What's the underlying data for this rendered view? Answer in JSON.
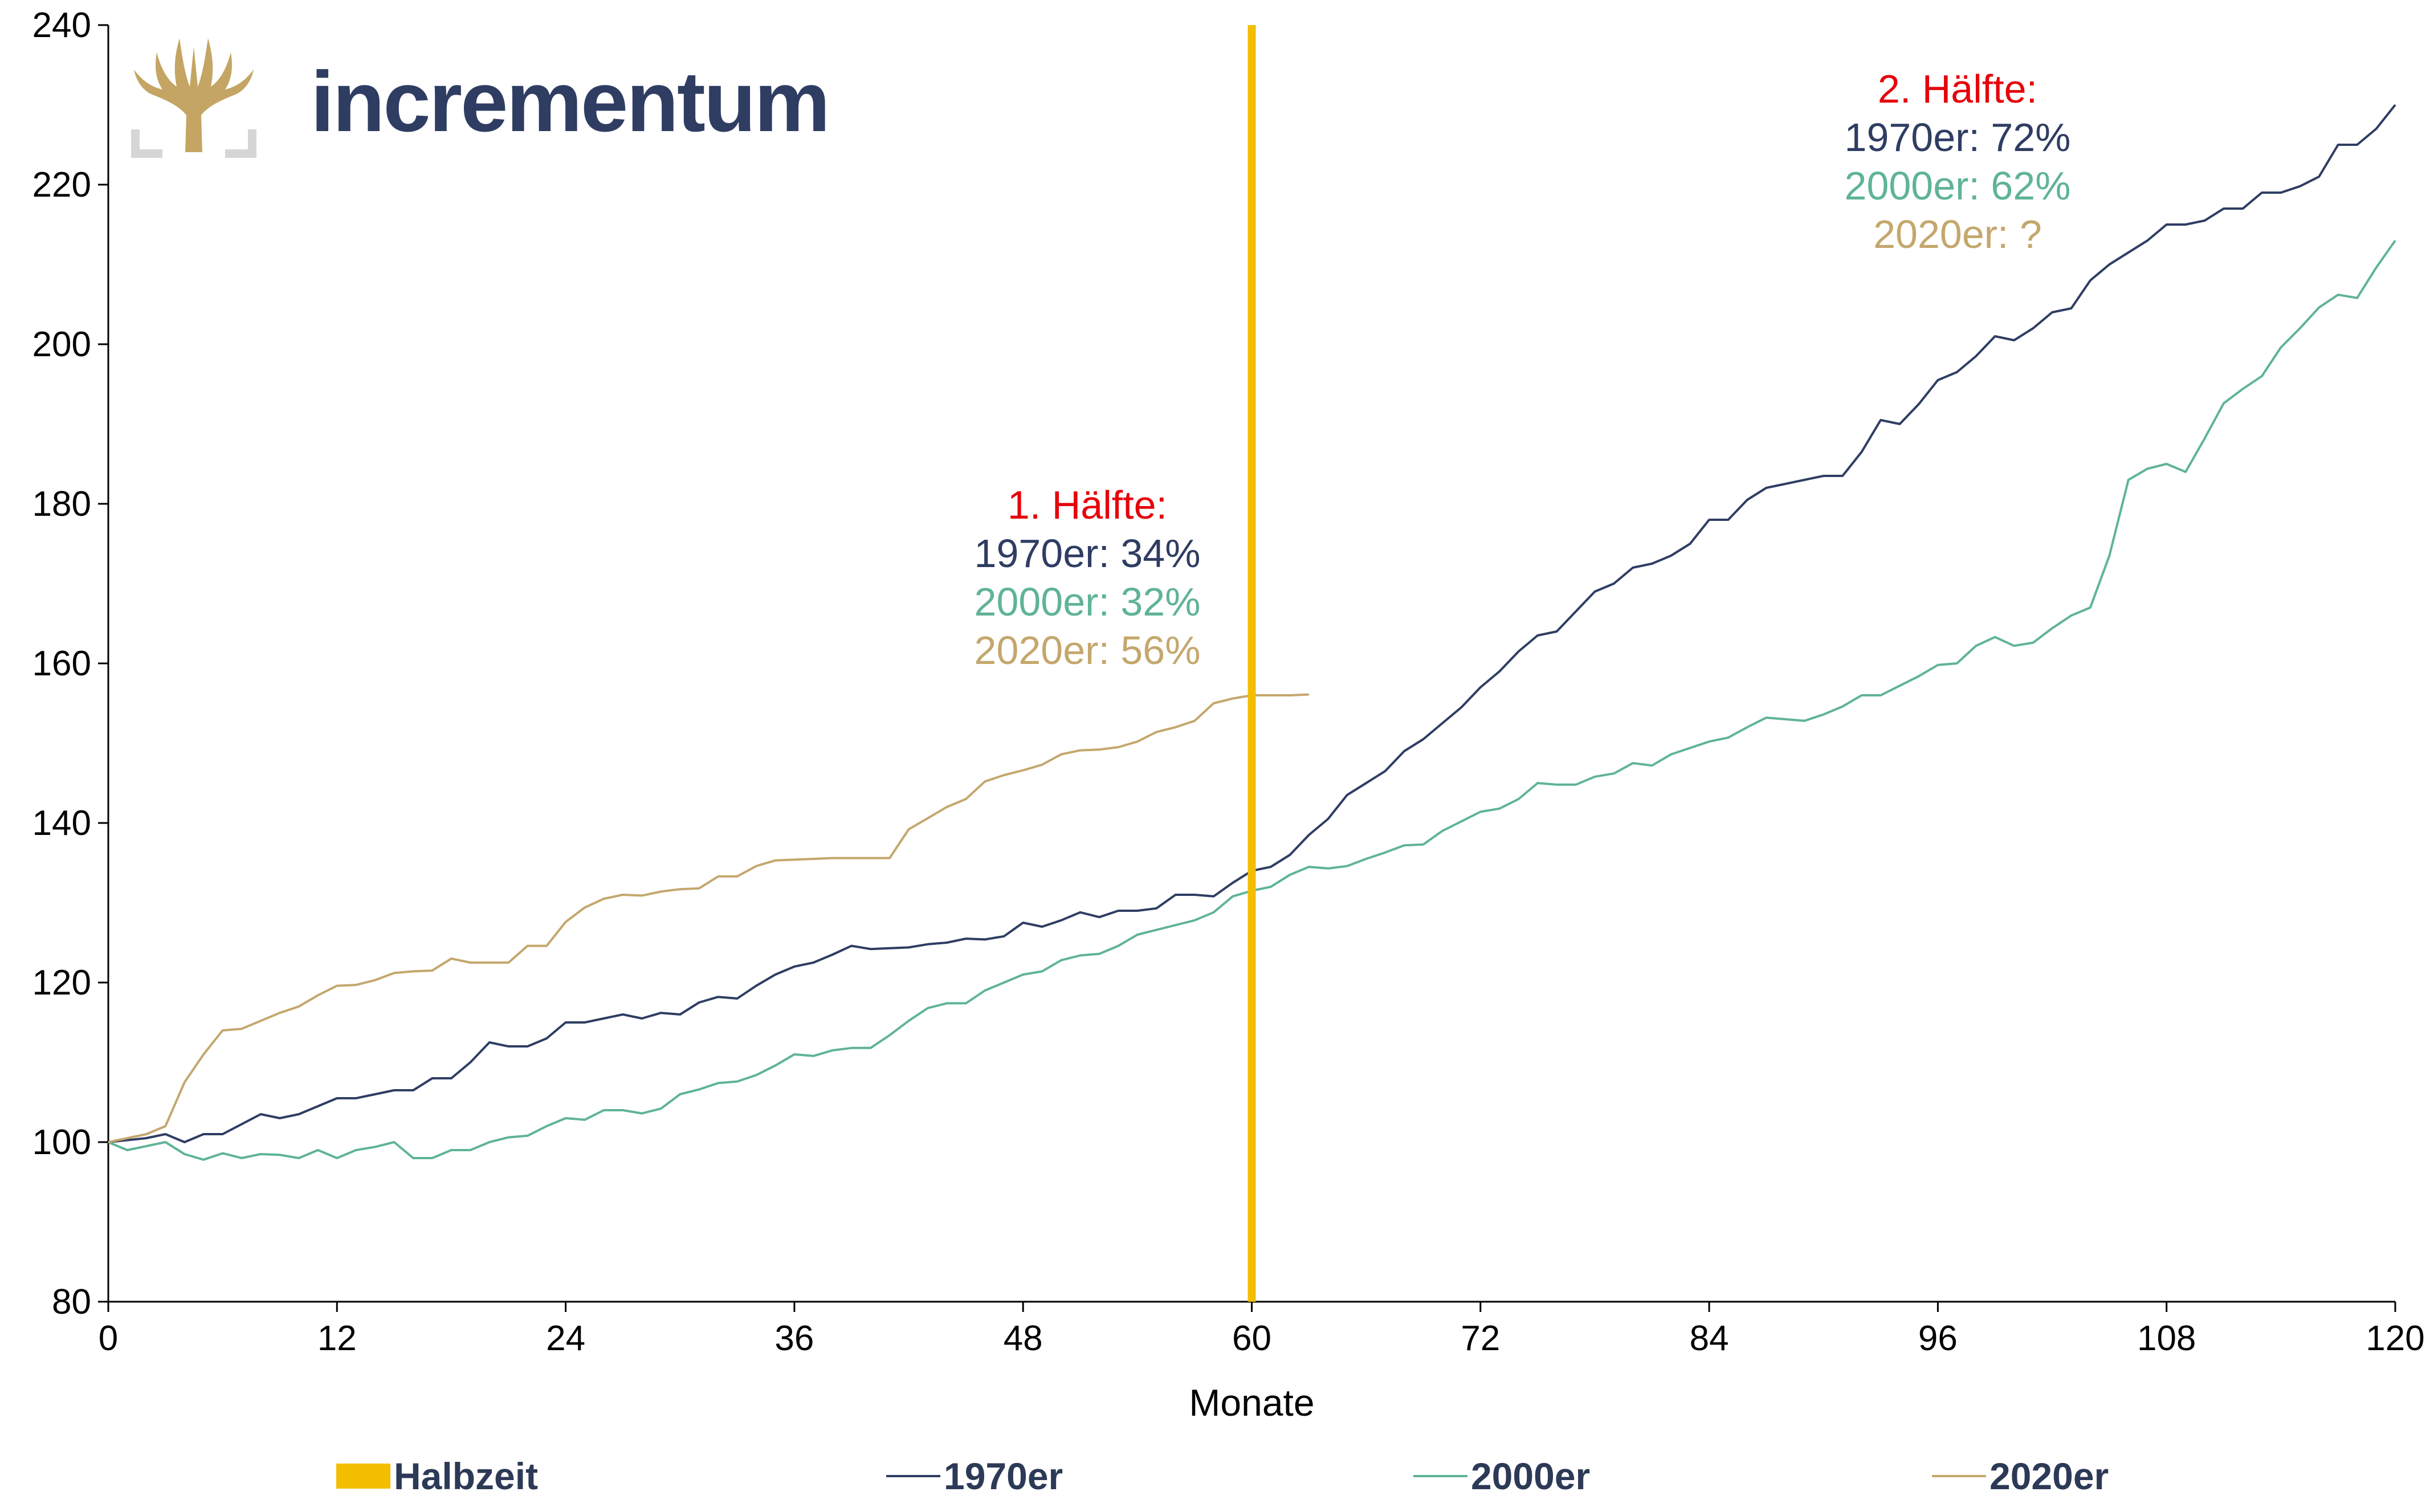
{
  "logo": {
    "text": "incrementum",
    "text_color": "#2f3d63",
    "tree_color": "#c4a563",
    "frame_color": "#d6d6d6"
  },
  "colors": {
    "halbzeit": "#f3bd00",
    "s1970": "#2f3d63",
    "s2000": "#5fb399",
    "s2020": "#c4a76d",
    "red": "#e6000a"
  },
  "legend": [
    {
      "label": "Halbzeit",
      "swatch": "bar",
      "color": "#f3bd00"
    },
    {
      "label": "1970er",
      "swatch": "line",
      "color": "#2f3d63"
    },
    {
      "label": "2000er",
      "swatch": "line",
      "color": "#5fb399"
    },
    {
      "label": "2020er",
      "swatch": "line",
      "color": "#c4a76d"
    }
  ],
  "annotations": {
    "first": {
      "title": "1. Hälfte:",
      "l1970": "1970er: 34%",
      "l2000": "2000er: 32%",
      "l2020": "2020er: 56%"
    },
    "second": {
      "title": "2. Hälfte:",
      "l1970": "1970er: 72%",
      "l2000": "2000er: 62%",
      "l2020": "2020er: ?"
    }
  },
  "chart_data": {
    "type": "line",
    "xlabel": "Monate",
    "ylabel": "",
    "xlim": [
      0,
      120
    ],
    "ylim": [
      80,
      240
    ],
    "xticks": [
      0,
      12,
      24,
      36,
      48,
      60,
      72,
      84,
      96,
      108,
      120
    ],
    "yticks": [
      80,
      100,
      120,
      140,
      160,
      180,
      200,
      220,
      240
    ],
    "grid": false,
    "legend_position": "bottom",
    "vline": {
      "name": "Halbzeit",
      "x": 60
    },
    "series": [
      {
        "name": "1970er",
        "points": [
          [
            0,
            100
          ],
          [
            2,
            100.5
          ],
          [
            3,
            101
          ],
          [
            4,
            100
          ],
          [
            5,
            101
          ],
          [
            6,
            101
          ],
          [
            8,
            103.5
          ],
          [
            9,
            103
          ],
          [
            10,
            103.5
          ],
          [
            11,
            104.5
          ],
          [
            12,
            105.5
          ],
          [
            13,
            105.5
          ],
          [
            14,
            106
          ],
          [
            15,
            106.5
          ],
          [
            16,
            106.5
          ],
          [
            17,
            108
          ],
          [
            18,
            108
          ],
          [
            19,
            110
          ],
          [
            20,
            112.5
          ],
          [
            21,
            112
          ],
          [
            22,
            112
          ],
          [
            23,
            113
          ],
          [
            24,
            115
          ],
          [
            25,
            115
          ],
          [
            26,
            115.5
          ],
          [
            27,
            116
          ],
          [
            28,
            115.5
          ],
          [
            29,
            116.2
          ],
          [
            30,
            116
          ],
          [
            31,
            117.5
          ],
          [
            32,
            118.2
          ],
          [
            33,
            118
          ],
          [
            34,
            119.6
          ],
          [
            35,
            121
          ],
          [
            36,
            122
          ],
          [
            37,
            122.5
          ],
          [
            38,
            123.5
          ],
          [
            39,
            124.6
          ],
          [
            40,
            124.2
          ],
          [
            41,
            124.3
          ],
          [
            42,
            124.4
          ],
          [
            43,
            124.8
          ],
          [
            44,
            125
          ],
          [
            45,
            125.5
          ],
          [
            46,
            125.4
          ],
          [
            47,
            125.8
          ],
          [
            48,
            127.5
          ],
          [
            49,
            127
          ],
          [
            50,
            127.8
          ],
          [
            51,
            128.8
          ],
          [
            52,
            128.2
          ],
          [
            53,
            129
          ],
          [
            54,
            129
          ],
          [
            55,
            129.3
          ],
          [
            56,
            131
          ],
          [
            57,
            131
          ],
          [
            58,
            130.8
          ],
          [
            59,
            132.5
          ],
          [
            60,
            134
          ],
          [
            61,
            134.5
          ],
          [
            62,
            136
          ],
          [
            63,
            138.5
          ],
          [
            64,
            140.5
          ],
          [
            65,
            143.5
          ],
          [
            66,
            145
          ],
          [
            67,
            146.5
          ],
          [
            68,
            149
          ],
          [
            69,
            150.5
          ],
          [
            70,
            152.5
          ],
          [
            71,
            154.5
          ],
          [
            72,
            157
          ],
          [
            73,
            159
          ],
          [
            74,
            161.5
          ],
          [
            75,
            163.5
          ],
          [
            76,
            164
          ],
          [
            77,
            166.5
          ],
          [
            78,
            169
          ],
          [
            79,
            170
          ],
          [
            80,
            172
          ],
          [
            81,
            172.5
          ],
          [
            82,
            173.5
          ],
          [
            83,
            175
          ],
          [
            84,
            178
          ],
          [
            85,
            178
          ],
          [
            86,
            180.5
          ],
          [
            87,
            182
          ],
          [
            88,
            182.5
          ],
          [
            89,
            183
          ],
          [
            90,
            183.5
          ],
          [
            91,
            183.5
          ],
          [
            92,
            186.5
          ],
          [
            93,
            190.5
          ],
          [
            94,
            190
          ],
          [
            95,
            192.5
          ],
          [
            96,
            195.5
          ],
          [
            97,
            196.5
          ],
          [
            98,
            198.5
          ],
          [
            99,
            201
          ],
          [
            100,
            200.5
          ],
          [
            101,
            202
          ],
          [
            102,
            204
          ],
          [
            103,
            204.5
          ],
          [
            104,
            208
          ],
          [
            105,
            210
          ],
          [
            106,
            211.5
          ],
          [
            107,
            213
          ],
          [
            108,
            215
          ],
          [
            109,
            215
          ],
          [
            110,
            215.5
          ],
          [
            111,
            217
          ],
          [
            112,
            217
          ],
          [
            113,
            219
          ],
          [
            114,
            219
          ],
          [
            115,
            219.8
          ],
          [
            116,
            221
          ],
          [
            117,
            225
          ],
          [
            118,
            225
          ],
          [
            119,
            227
          ],
          [
            120,
            230
          ]
        ]
      },
      {
        "name": "2000er",
        "points": [
          [
            0,
            100
          ],
          [
            1,
            99
          ],
          [
            2,
            99.5
          ],
          [
            3,
            100
          ],
          [
            4,
            98.5
          ],
          [
            5,
            97.8
          ],
          [
            6,
            98.6
          ],
          [
            7,
            98
          ],
          [
            8,
            98.5
          ],
          [
            9,
            98.4
          ],
          [
            10,
            98
          ],
          [
            11,
            99
          ],
          [
            12,
            98
          ],
          [
            13,
            99
          ],
          [
            14,
            99.4
          ],
          [
            15,
            100
          ],
          [
            16,
            98
          ],
          [
            17,
            98
          ],
          [
            18,
            99
          ],
          [
            19,
            99
          ],
          [
            20,
            100
          ],
          [
            21,
            100.6
          ],
          [
            22,
            100.8
          ],
          [
            23,
            102
          ],
          [
            24,
            103
          ],
          [
            25,
            102.8
          ],
          [
            26,
            104
          ],
          [
            27,
            104
          ],
          [
            28,
            103.6
          ],
          [
            29,
            104.2
          ],
          [
            30,
            106
          ],
          [
            31,
            106.6
          ],
          [
            32,
            107.4
          ],
          [
            33,
            107.6
          ],
          [
            34,
            108.4
          ],
          [
            35,
            109.6
          ],
          [
            36,
            111
          ],
          [
            37,
            110.8
          ],
          [
            38,
            111.5
          ],
          [
            39,
            111.8
          ],
          [
            40,
            111.8
          ],
          [
            41,
            113.4
          ],
          [
            42,
            115.2
          ],
          [
            43,
            116.8
          ],
          [
            44,
            117.4
          ],
          [
            45,
            117.4
          ],
          [
            46,
            119
          ],
          [
            47,
            120
          ],
          [
            48,
            121
          ],
          [
            49,
            121.4
          ],
          [
            50,
            122.8
          ],
          [
            51,
            123.4
          ],
          [
            52,
            123.6
          ],
          [
            53,
            124.6
          ],
          [
            54,
            126
          ],
          [
            55,
            126.6
          ],
          [
            56,
            127.2
          ],
          [
            57,
            127.8
          ],
          [
            58,
            128.8
          ],
          [
            59,
            130.8
          ],
          [
            60,
            131.5
          ],
          [
            61,
            132
          ],
          [
            62,
            133.5
          ],
          [
            63,
            134.5
          ],
          [
            64,
            134.3
          ],
          [
            65,
            134.6
          ],
          [
            66,
            135.5
          ],
          [
            67,
            136.3
          ],
          [
            68,
            137.2
          ],
          [
            69,
            137.3
          ],
          [
            70,
            139
          ],
          [
            71,
            140.2
          ],
          [
            72,
            141.4
          ],
          [
            73,
            141.8
          ],
          [
            74,
            143
          ],
          [
            75,
            145
          ],
          [
            76,
            144.8
          ],
          [
            77,
            144.8
          ],
          [
            78,
            145.8
          ],
          [
            79,
            146.2
          ],
          [
            80,
            147.5
          ],
          [
            81,
            147.2
          ],
          [
            82,
            148.6
          ],
          [
            83,
            149.4
          ],
          [
            84,
            150.2
          ],
          [
            85,
            150.7
          ],
          [
            86,
            152
          ],
          [
            87,
            153.2
          ],
          [
            88,
            153
          ],
          [
            89,
            152.8
          ],
          [
            90,
            153.6
          ],
          [
            91,
            154.6
          ],
          [
            92,
            156
          ],
          [
            93,
            156
          ],
          [
            94,
            157.2
          ],
          [
            95,
            158.4
          ],
          [
            96,
            159.8
          ],
          [
            97,
            160
          ],
          [
            98,
            162.2
          ],
          [
            99,
            163.3
          ],
          [
            100,
            162.2
          ],
          [
            101,
            162.6
          ],
          [
            102,
            164.4
          ],
          [
            103,
            166
          ],
          [
            104,
            167
          ],
          [
            105,
            173.5
          ],
          [
            106,
            183
          ],
          [
            107,
            184.4
          ],
          [
            108,
            185
          ],
          [
            109,
            184
          ],
          [
            110,
            188.2
          ],
          [
            111,
            192.6
          ],
          [
            112,
            194.4
          ],
          [
            113,
            196
          ],
          [
            114,
            199.6
          ],
          [
            115,
            202
          ],
          [
            116,
            204.6
          ],
          [
            117,
            206.2
          ],
          [
            118,
            205.8
          ],
          [
            119,
            209.6
          ],
          [
            120,
            213
          ]
        ]
      },
      {
        "name": "2020er",
        "points": [
          [
            0,
            100
          ],
          [
            1,
            100.5
          ],
          [
            2,
            101
          ],
          [
            3,
            102
          ],
          [
            4,
            107.5
          ],
          [
            5,
            111
          ],
          [
            6,
            114
          ],
          [
            7,
            114.2
          ],
          [
            8,
            115.2
          ],
          [
            9,
            116.2
          ],
          [
            10,
            117
          ],
          [
            11,
            118.4
          ],
          [
            12,
            119.6
          ],
          [
            13,
            119.7
          ],
          [
            14,
            120.3
          ],
          [
            15,
            121.2
          ],
          [
            16,
            121.4
          ],
          [
            17,
            121.5
          ],
          [
            18,
            123
          ],
          [
            19,
            122.5
          ],
          [
            20,
            122.5
          ],
          [
            21,
            122.5
          ],
          [
            22,
            124.6
          ],
          [
            23,
            124.6
          ],
          [
            24,
            127.6
          ],
          [
            25,
            129.4
          ],
          [
            26,
            130.5
          ],
          [
            27,
            131
          ],
          [
            28,
            130.9
          ],
          [
            29,
            131.4
          ],
          [
            30,
            131.7
          ],
          [
            31,
            131.8
          ],
          [
            32,
            133.3
          ],
          [
            33,
            133.3
          ],
          [
            34,
            134.6
          ],
          [
            35,
            135.3
          ],
          [
            36,
            135.4
          ],
          [
            37,
            135.5
          ],
          [
            38,
            135.6
          ],
          [
            39,
            135.6
          ],
          [
            40,
            135.6
          ],
          [
            41,
            135.6
          ],
          [
            42,
            139.2
          ],
          [
            43,
            140.6
          ],
          [
            44,
            142
          ],
          [
            45,
            143
          ],
          [
            46,
            145.2
          ],
          [
            47,
            146
          ],
          [
            48,
            146.6
          ],
          [
            49,
            147.3
          ],
          [
            50,
            148.6
          ],
          [
            51,
            149.1
          ],
          [
            52,
            149.2
          ],
          [
            53,
            149.5
          ],
          [
            54,
            150.2
          ],
          [
            55,
            151.4
          ],
          [
            56,
            152
          ],
          [
            57,
            152.8
          ],
          [
            58,
            155
          ],
          [
            59,
            155.6
          ],
          [
            60,
            156
          ],
          [
            61,
            156
          ],
          [
            62,
            156
          ],
          [
            63,
            156.1
          ]
        ]
      }
    ]
  }
}
